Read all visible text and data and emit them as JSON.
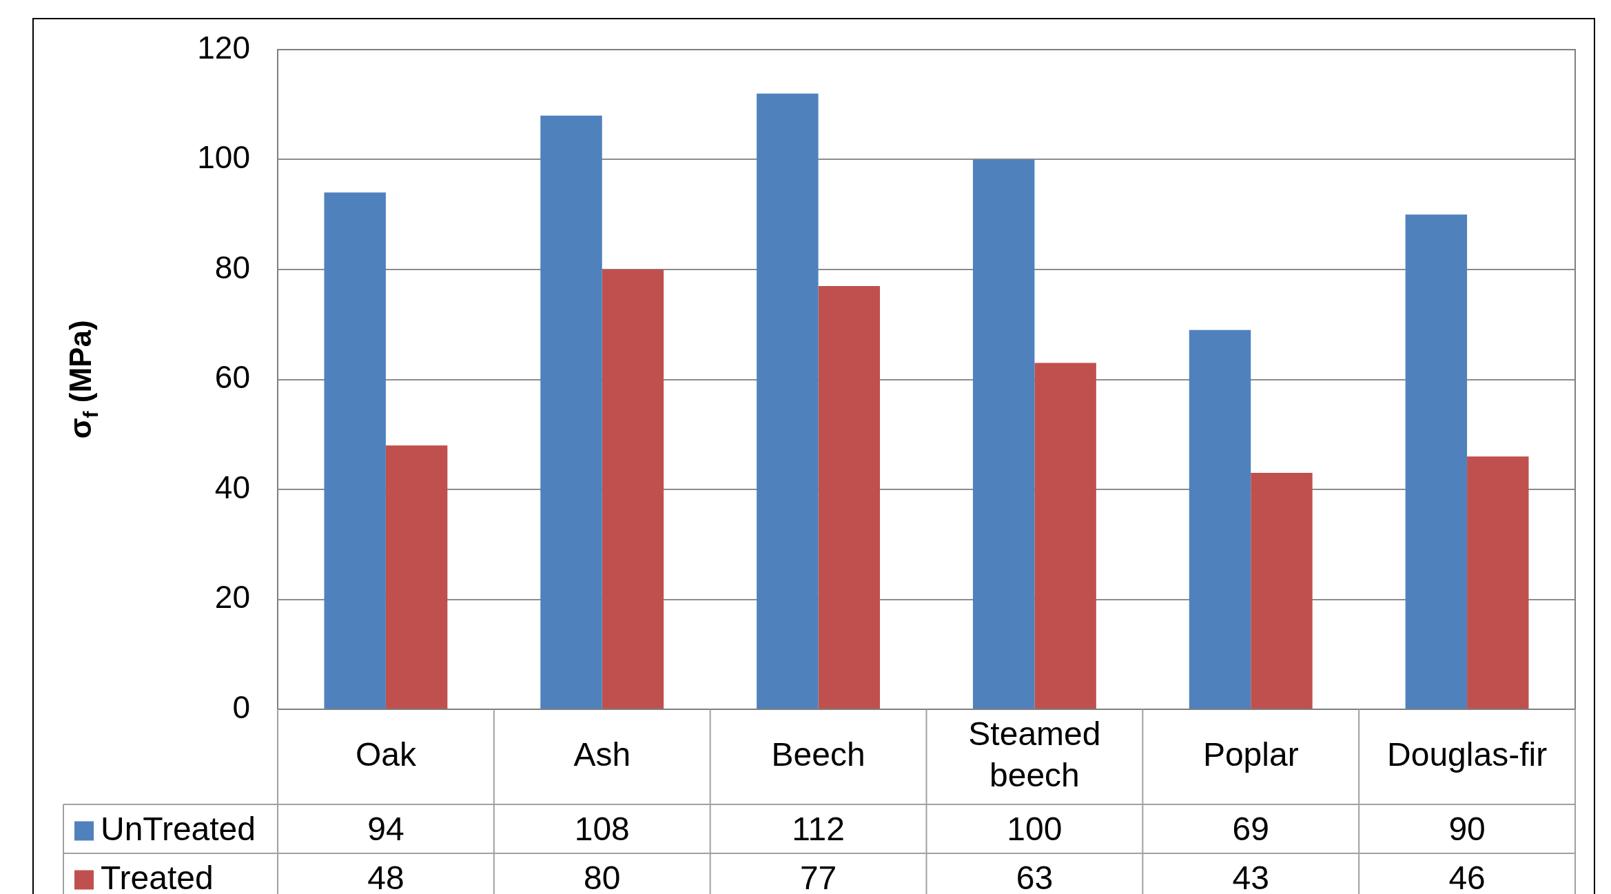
{
  "chart_data": {
    "type": "bar",
    "ylabel": "σ$_{f}$ (MPa)",
    "categories": [
      "Oak",
      "Ash",
      "Beech",
      "Steamed beech",
      "Poplar",
      "Douglas-fir"
    ],
    "series": [
      {
        "name": "UnTreated",
        "color": "#4f81bd",
        "values": [
          94,
          108,
          112,
          100,
          69,
          90
        ]
      },
      {
        "name": "Treated",
        "color": "#c0504d",
        "values": [
          48,
          80,
          77,
          63,
          43,
          46
        ]
      }
    ],
    "ylim": [
      0,
      120
    ],
    "yticks": [
      0,
      20,
      40,
      60,
      80,
      100,
      120
    ],
    "grid": "y",
    "legend": "bottom",
    "data_labels": true
  }
}
